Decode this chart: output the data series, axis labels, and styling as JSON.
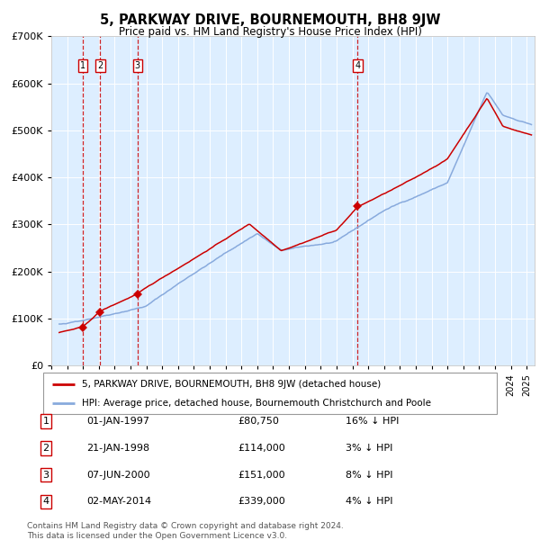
{
  "title": "5, PARKWAY DRIVE, BOURNEMOUTH, BH8 9JW",
  "subtitle": "Price paid vs. HM Land Registry's House Price Index (HPI)",
  "footer1": "Contains HM Land Registry data © Crown copyright and database right 2024.",
  "footer2": "This data is licensed under the Open Government Licence v3.0.",
  "legend_line1": "5, PARKWAY DRIVE, BOURNEMOUTH, BH8 9JW (detached house)",
  "legend_line2": "HPI: Average price, detached house, Bournemouth Christchurch and Poole",
  "transactions": [
    {
      "num": 1,
      "date": "01-JAN-1997",
      "price": 80750,
      "price_str": "£80,750",
      "pct_str": "16% ↓ HPI",
      "year_x": 1997.0
    },
    {
      "num": 2,
      "date": "21-JAN-1998",
      "price": 114000,
      "price_str": "£114,000",
      "pct_str": "3% ↓ HPI",
      "year_x": 1998.083
    },
    {
      "num": 3,
      "date": "07-JUN-2000",
      "price": 151000,
      "price_str": "£151,000",
      "pct_str": "8% ↓ HPI",
      "year_x": 2000.44
    },
    {
      "num": 4,
      "date": "02-MAY-2014",
      "price": 339000,
      "price_str": "£339,000",
      "pct_str": "4% ↓ HPI",
      "year_x": 2014.33
    }
  ],
  "vline_color": "#cc0000",
  "hpi_color": "#88aadd",
  "price_color": "#cc0000",
  "marker_color": "#cc0000",
  "background_color": "#ddeeff",
  "plot_bg": "#ffffff",
  "ylim": [
    0,
    700000
  ],
  "xlim_start": 1995.25,
  "xlim_end": 2025.5,
  "yticks": [
    0,
    100000,
    200000,
    300000,
    400000,
    500000,
    600000,
    700000
  ],
  "ytick_labels": [
    "£0",
    "£100K",
    "£200K",
    "£300K",
    "£400K",
    "£500K",
    "£600K",
    "£700K"
  ]
}
